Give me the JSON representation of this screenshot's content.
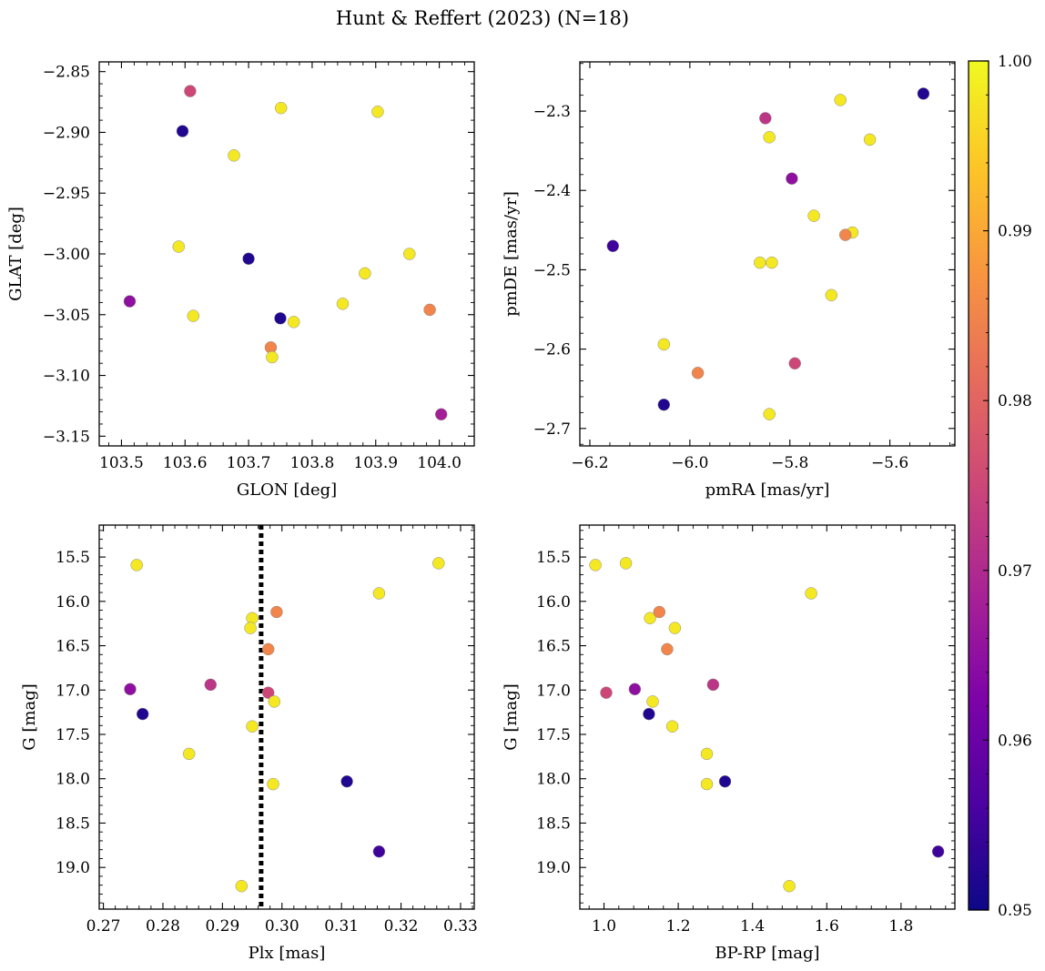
{
  "figure": {
    "title": "Hunt & Reffert (2023) (N=18)"
  },
  "colorbar": {
    "colormap": "plasma",
    "range": [
      0.95,
      1.0
    ],
    "ticks": [
      0.95,
      0.96,
      0.97,
      0.98,
      0.99,
      1.0
    ],
    "tick_labels": [
      "0.95",
      "0.96",
      "0.97",
      "0.98",
      "0.99",
      "1.00"
    ]
  },
  "chart_data": [
    {
      "type": "scatter",
      "panel": "top-left",
      "xlabel": "GLON [deg]",
      "ylabel": "GLAT [deg]",
      "xlim": [
        103.465,
        104.055
      ],
      "ylim": [
        -3.158,
        -2.842
      ],
      "y_inverted": false,
      "xticks": [
        103.5,
        103.6,
        103.7,
        103.8,
        103.9,
        104.0
      ],
      "xtick_labels": [
        "103.5",
        "103.6",
        "103.7",
        "103.8",
        "103.9",
        "104.0"
      ],
      "yticks": [
        -3.15,
        -3.1,
        -3.05,
        -3.0,
        -2.95,
        -2.9,
        -2.85
      ],
      "ytick_labels": [
        "−3.15",
        "−3.10",
        "−3.05",
        "−3.00",
        "−2.95",
        "−2.90",
        "−2.85"
      ],
      "x": [
        103.608,
        103.596,
        103.751,
        103.903,
        103.677,
        103.59,
        103.7,
        103.953,
        103.513,
        103.883,
        103.613,
        103.848,
        103.75,
        103.771,
        103.985,
        103.735,
        103.737,
        104.003
      ],
      "y": [
        -2.866,
        -2.899,
        -2.88,
        -2.883,
        -2.919,
        -2.994,
        -3.004,
        -3.0,
        -3.039,
        -3.016,
        -3.051,
        -3.041,
        -3.053,
        -3.056,
        -3.046,
        -3.077,
        -3.085,
        -3.132
      ],
      "c": [
        0.975,
        0.952,
        0.998,
        0.998,
        0.998,
        0.998,
        0.952,
        0.998,
        0.965,
        0.998,
        0.998,
        0.998,
        0.952,
        0.998,
        0.985,
        0.985,
        0.998,
        0.968
      ]
    },
    {
      "type": "scatter",
      "panel": "top-right",
      "xlabel": "pmRA [mas/yr]",
      "ylabel": "pmDE [mas/yr]",
      "xlim": [
        -6.22,
        -5.47
      ],
      "ylim": [
        -2.722,
        -2.238
      ],
      "y_inverted": false,
      "xticks": [
        -6.2,
        -6.0,
        -5.8,
        -5.6
      ],
      "xtick_labels": [
        "−6.2",
        "−6.0",
        "−5.8",
        "−5.6"
      ],
      "yticks": [
        -2.7,
        -2.6,
        -2.5,
        -2.4,
        -2.3
      ],
      "ytick_labels": [
        "−2.7",
        "−2.6",
        "−2.5",
        "−2.4",
        "−2.3"
      ],
      "x": [
        -5.533,
        -5.699,
        -5.849,
        -5.841,
        -5.64,
        -5.796,
        -6.154,
        -5.752,
        -5.675,
        -5.689,
        -5.86,
        -5.836,
        -5.717,
        -6.052,
        -5.984,
        -5.79,
        -6.052,
        -5.841
      ],
      "y": [
        -2.278,
        -2.286,
        -2.309,
        -2.333,
        -2.336,
        -2.385,
        -2.47,
        -2.432,
        -2.453,
        -2.456,
        -2.491,
        -2.491,
        -2.532,
        -2.594,
        -2.63,
        -2.618,
        -2.67,
        -2.682
      ],
      "c": [
        0.952,
        0.998,
        0.972,
        0.998,
        0.998,
        0.965,
        0.955,
        0.998,
        0.998,
        0.985,
        0.998,
        0.998,
        0.998,
        0.998,
        0.985,
        0.975,
        0.952,
        0.998
      ]
    },
    {
      "type": "scatter",
      "panel": "bottom-left",
      "xlabel": "Plx [mas]",
      "ylabel": "G [mag]",
      "xlim": [
        0.2693,
        0.3323
      ],
      "ylim": [
        19.47,
        15.14
      ],
      "y_inverted": true,
      "xticks": [
        0.27,
        0.28,
        0.29,
        0.3,
        0.31,
        0.32,
        0.33
      ],
      "xtick_labels": [
        "0.27",
        "0.28",
        "0.29",
        "0.30",
        "0.31",
        "0.32",
        "0.33"
      ],
      "yticks": [
        15.5,
        16.0,
        16.5,
        17.0,
        17.5,
        18.0,
        18.5,
        19.0
      ],
      "ytick_labels": [
        "15.5",
        "16.0",
        "16.5",
        "17.0",
        "17.5",
        "18.0",
        "18.5",
        "19.0"
      ],
      "x": [
        0.2756,
        0.3263,
        0.3163,
        0.295,
        0.2991,
        0.2947,
        0.2977,
        0.288,
        0.2745,
        0.2977,
        0.2987,
        0.2766,
        0.295,
        0.2844,
        0.2985,
        0.3109,
        0.3163,
        0.2932
      ],
      "y": [
        15.59,
        15.57,
        15.91,
        16.19,
        16.12,
        16.3,
        16.54,
        16.94,
        16.99,
        17.03,
        17.13,
        17.27,
        17.41,
        17.72,
        18.06,
        18.03,
        18.82,
        19.21
      ],
      "c": [
        0.998,
        0.998,
        0.998,
        0.998,
        0.985,
        0.998,
        0.985,
        0.972,
        0.965,
        0.975,
        0.998,
        0.952,
        0.998,
        0.998,
        0.998,
        0.952,
        0.955,
        0.998
      ],
      "vline": {
        "x": 0.2965,
        "style": "dotted",
        "color": "#000000"
      }
    },
    {
      "type": "scatter",
      "panel": "bottom-right",
      "xlabel": "BP-RP [mag]",
      "ylabel": "G [mag]",
      "xlim": [
        0.935,
        1.945
      ],
      "ylim": [
        19.47,
        15.14
      ],
      "y_inverted": true,
      "xticks": [
        1.0,
        1.2,
        1.4,
        1.6,
        1.8
      ],
      "xtick_labels": [
        "1.0",
        "1.2",
        "1.4",
        "1.6",
        "1.8"
      ],
      "yticks": [
        15.5,
        16.0,
        16.5,
        17.0,
        17.5,
        18.0,
        18.5,
        19.0
      ],
      "ytick_labels": [
        "15.5",
        "16.0",
        "16.5",
        "17.0",
        "17.5",
        "18.0",
        "18.5",
        "19.0"
      ],
      "x": [
        0.977,
        1.059,
        1.558,
        1.124,
        1.149,
        1.191,
        1.17,
        1.294,
        1.083,
        1.006,
        1.131,
        1.121,
        1.184,
        1.277,
        1.277,
        1.326,
        1.9,
        1.499
      ],
      "y": [
        15.59,
        15.57,
        15.91,
        16.19,
        16.12,
        16.3,
        16.54,
        16.94,
        16.99,
        17.03,
        17.13,
        17.27,
        17.41,
        17.72,
        18.06,
        18.03,
        18.82,
        19.21
      ],
      "c": [
        0.998,
        0.998,
        0.998,
        0.998,
        0.985,
        0.998,
        0.985,
        0.972,
        0.965,
        0.975,
        0.998,
        0.952,
        0.998,
        0.998,
        0.998,
        0.952,
        0.955,
        0.998
      ]
    }
  ]
}
